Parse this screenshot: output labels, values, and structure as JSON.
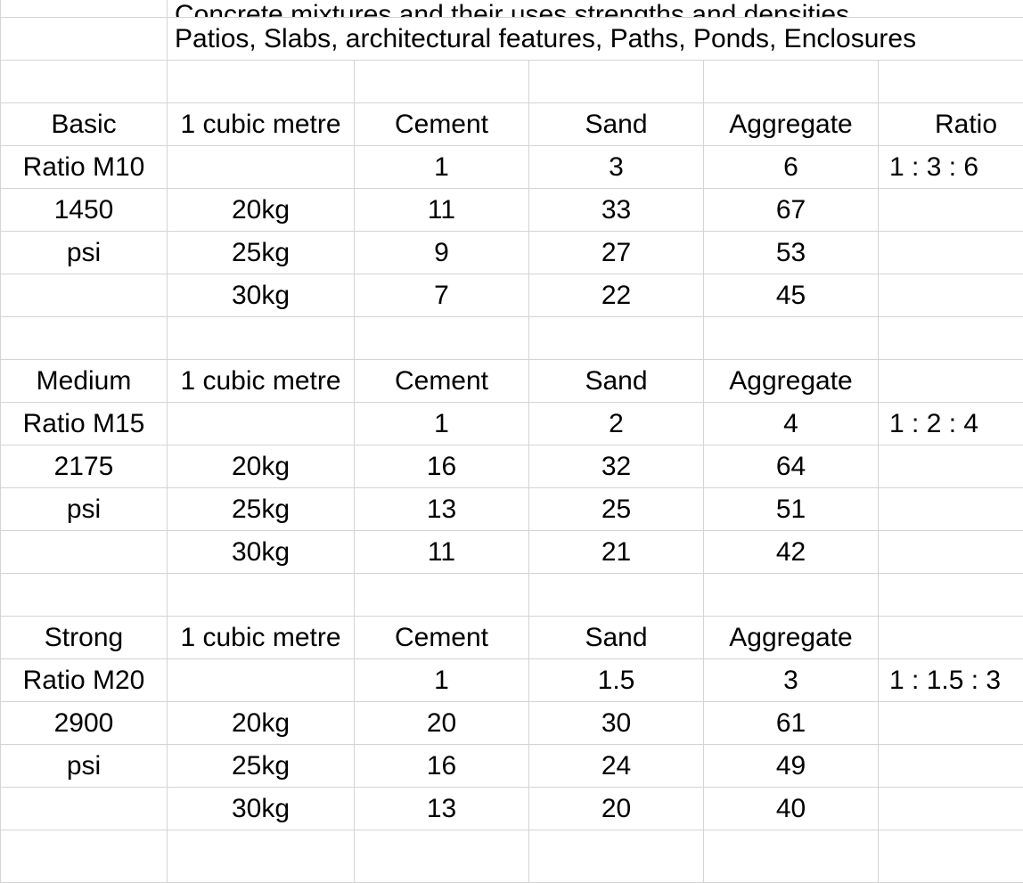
{
  "top_text_cut": "Concrete mixtures and their uses strengths and densities",
  "uses_line": "Patios, Slabs, architectural features, Paths, Ponds, Enclosures",
  "sections": [
    {
      "name": "Basic",
      "ratio_name": "Ratio M10",
      "psi_value": "1450",
      "psi_unit": "psi",
      "volume_label": "1 cubic metre",
      "headers": [
        "Cement",
        "Sand",
        "Aggregate"
      ],
      "ratio_header": "Ratio",
      "ratio_parts": [
        "1",
        "3",
        "6"
      ],
      "ratio_text": "1 : 3 : 6",
      "rows": [
        {
          "bag": "20kg",
          "cement": "11",
          "sand": "33",
          "aggregate": "67"
        },
        {
          "bag": "25kg",
          "cement": "9",
          "sand": "27",
          "aggregate": "53"
        },
        {
          "bag": "30kg",
          "cement": "7",
          "sand": "22",
          "aggregate": "45"
        }
      ]
    },
    {
      "name": "Medium",
      "ratio_name": "Ratio M15",
      "psi_value": "2175",
      "psi_unit": "psi",
      "volume_label": "1 cubic metre",
      "headers": [
        "Cement",
        "Sand",
        "Aggregate"
      ],
      "ratio_header": "",
      "ratio_parts": [
        "1",
        "2",
        "4"
      ],
      "ratio_text": "1 : 2 : 4",
      "rows": [
        {
          "bag": "20kg",
          "cement": "16",
          "sand": "32",
          "aggregate": "64"
        },
        {
          "bag": "25kg",
          "cement": "13",
          "sand": "25",
          "aggregate": "51"
        },
        {
          "bag": "30kg",
          "cement": "11",
          "sand": "21",
          "aggregate": "42"
        }
      ]
    },
    {
      "name": "Strong",
      "ratio_name": "Ratio M20",
      "psi_value": "2900",
      "psi_unit": "psi",
      "volume_label": "1 cubic metre",
      "headers": [
        "Cement",
        "Sand",
        "Aggregate"
      ],
      "ratio_header": "",
      "ratio_parts": [
        "1",
        "1.5",
        "3"
      ],
      "ratio_text": "1 : 1.5 : 3",
      "rows": [
        {
          "bag": "20kg",
          "cement": "20",
          "sand": "30",
          "aggregate": "61"
        },
        {
          "bag": "25kg",
          "cement": "16",
          "sand": "24",
          "aggregate": "49"
        },
        {
          "bag": "30kg",
          "cement": "13",
          "sand": "20",
          "aggregate": "40"
        }
      ]
    }
  ]
}
